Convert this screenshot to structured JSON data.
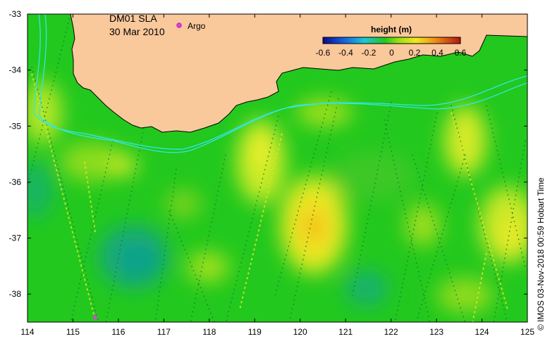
{
  "map": {
    "title_line1": "DM01 SLA",
    "title_line2": "30 Mar 2010",
    "legend_argo": "Argo",
    "colorbar": {
      "label": "height (m)",
      "ticks": [
        "-0.6",
        "-0.4",
        "-0.2",
        "0",
        "0.2",
        "0.4",
        "0.6"
      ],
      "range": [
        -0.6,
        0.6
      ]
    },
    "x_ticks": [
      "114",
      "115",
      "116",
      "117",
      "118",
      "119",
      "120",
      "121",
      "122",
      "123",
      "124",
      "125"
    ],
    "y_ticks": [
      "-33",
      "-34",
      "-35",
      "-36",
      "-37",
      "-38"
    ],
    "lon_range": [
      114,
      125
    ],
    "lat_range": [
      -38.5,
      -33
    ],
    "credit": "© IMOS 03-Nov-2018 00:59 Hobart Time",
    "colors": {
      "ocean_base": "#22c81e",
      "land": "#f9c89b",
      "current_line": "#33e6e6",
      "argo_marker": "#e040e0"
    }
  }
}
